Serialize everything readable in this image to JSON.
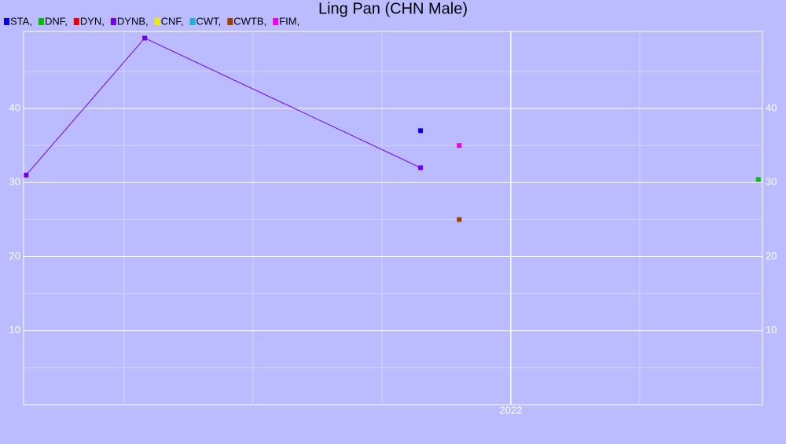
{
  "chart_data": {
    "type": "scatter",
    "title": "Ling Pan (CHN Male)",
    "xlim": [
      2020.11,
      2022.976
    ],
    "xticks": [
      {
        "value": 2022,
        "label": "2022"
      }
    ],
    "minor_xticks": [
      2020.5,
      2021,
      2021.5,
      2022.5
    ],
    "ylim": [
      0,
      50.4
    ],
    "yticks": [
      10,
      20,
      30,
      40
    ],
    "minor_yticks": [
      5,
      15,
      25,
      35,
      45
    ],
    "grid": true,
    "series": [
      {
        "name": "STA,",
        "color": "#0000ee",
        "x": [
          2021.65
        ],
        "values": [
          37
        ]
      },
      {
        "name": "DNF,",
        "color": "#00c000",
        "x": [
          2022.96
        ],
        "values": [
          30.4
        ]
      },
      {
        "name": "DYN,",
        "color": "#ee0000",
        "x": [],
        "values": []
      },
      {
        "name": "DYNB,",
        "color": "#7000ee",
        "x": [
          2020.12,
          2020.58,
          2021.65
        ],
        "values": [
          31,
          49.5,
          32
        ]
      },
      {
        "name": "CNF,",
        "color": "#eeee00",
        "x": [],
        "values": []
      },
      {
        "name": "CWT,",
        "color": "#20b0d0",
        "x": [],
        "values": []
      },
      {
        "name": "CWTB,",
        "color": "#a04000",
        "x": [
          2021.8
        ],
        "values": [
          25
        ]
      },
      {
        "name": "FIM,",
        "color": "#ee00ee",
        "x": [
          2021.8
        ],
        "values": [
          35
        ]
      }
    ]
  }
}
